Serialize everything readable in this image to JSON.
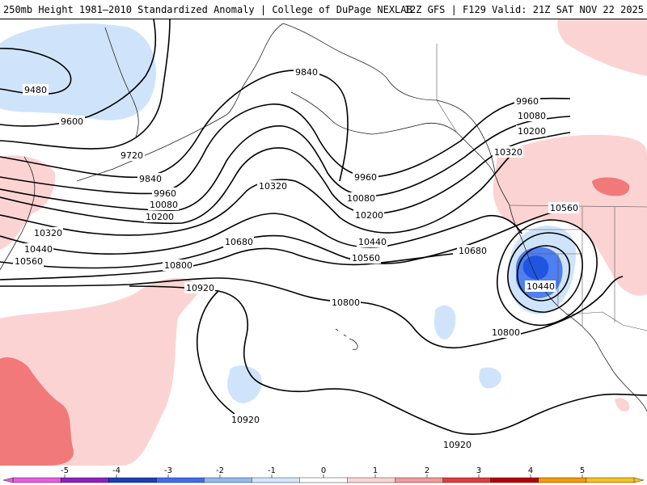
{
  "header": {
    "title": "250mb Height 1981–2010 Standardized Anomaly | College of DuPage NEXLAB",
    "run_info": "12Z GFS | F129 Valid: 21Z SAT NOV 22 2025"
  },
  "contour_labels": {
    "l9480": "9480",
    "l9600": "9600",
    "l9720": "9720",
    "l9840a": "9840",
    "l9840b": "9840",
    "l9960a": "9960",
    "l9960b": "9960",
    "l9960c": "9960",
    "l10080a": "10080",
    "l10080b": "10080",
    "l10080c": "10080",
    "l10200a": "10200",
    "l10200b": "10200",
    "l10200c": "10200",
    "l10320a": "10320",
    "l10320b": "10320",
    "l10320c": "10320",
    "l10440a": "10440",
    "l10440b": "10440",
    "l10440c": "10440",
    "l10560a": "10560",
    "l10560b": "10560",
    "l10560c": "10560",
    "l10680a": "10680",
    "l10680b": "10680",
    "l10800a": "10800",
    "l10800b": "10800",
    "l10800c": "10800",
    "l10920a": "10920",
    "l10920b": "10920",
    "l10920c": "10920"
  },
  "legend": {
    "ticks": [
      "-5",
      "-4",
      "-3",
      "-2",
      "-1",
      "0",
      "1",
      "2",
      "3",
      "4",
      "5"
    ],
    "colors": [
      "#e85ce0",
      "#8e1fc2",
      "#1a3fb8",
      "#3e6cf0",
      "#93b8f2",
      "#d3e6fb",
      "#ffffff",
      "#fcd6d6",
      "#f49a9a",
      "#e33b3b",
      "#b80000",
      "#f59a00",
      "#f7c21e"
    ]
  },
  "fill_colors": {
    "pos1": "#fcd3d3",
    "pos2": "#f2797a",
    "neg1": "#cfe4fb",
    "neg2": "#4f7ff0",
    "neg3": "#1f55e0"
  }
}
